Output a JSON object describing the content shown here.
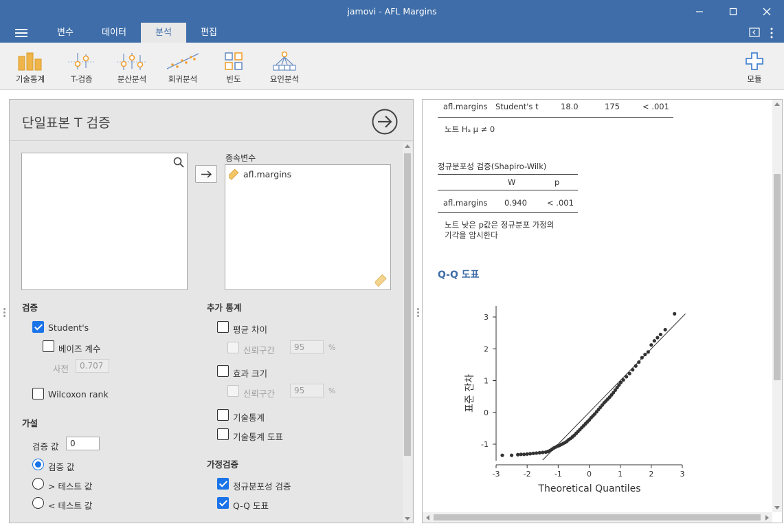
{
  "window": {
    "title": "jamovi - AFL Margins"
  },
  "menu": {
    "tabs": [
      "변수",
      "데이터",
      "분석",
      "편집"
    ],
    "active_tab": "분석"
  },
  "ribbon": {
    "items": [
      {
        "label": "기술통계",
        "icon": "bar-chart-icon"
      },
      {
        "label": "T-검증",
        "icon": "ttest-icon"
      },
      {
        "label": "분산분석",
        "icon": "anova-icon"
      },
      {
        "label": "회귀분석",
        "icon": "regression-icon"
      },
      {
        "label": "빈도",
        "icon": "frequency-icon"
      },
      {
        "label": "요인분석",
        "icon": "factor-icon"
      }
    ],
    "modules_label": "모듈"
  },
  "analysis": {
    "title": "단일표본 T 검증",
    "dependent_label": "종속변수",
    "dependent_vars": [
      "afl.margins"
    ],
    "tests": {
      "header": "검증",
      "students": "Student's",
      "bayes": "베이즈 계수",
      "prior_label": "사전",
      "prior_value": "0.707",
      "wilcoxon": "Wilcoxon rank"
    },
    "hypothesis": {
      "header": "가설",
      "test_value_label": "검증 값",
      "test_value": "0",
      "options": [
        "검증 값",
        "> 테스트 값",
        "< 테스트 값"
      ]
    },
    "additional": {
      "header": "추가 통계",
      "mean_diff": "평균 차이",
      "ci_label": "신뢰구간",
      "ci_value": "95",
      "pct": "%",
      "effect_size": "효과 크기",
      "descriptives": "기술통계",
      "desc_plots": "기술통계 도표"
    },
    "assumptions": {
      "header": "가정검증",
      "normality": "정규분포성 검증",
      "qq": "Q-Q 도표"
    }
  },
  "results": {
    "ttest_row": [
      "afl.margins",
      "Student's t",
      "18.0",
      "175",
      "< .001"
    ],
    "ttest_note": "노트 Hₐ μ ≠ 0",
    "normality_title": "정규분포성 검증(Shapiro-Wilk)",
    "normality_headers": [
      "W",
      "p"
    ],
    "normality_row": [
      "afl.margins",
      "0.940",
      "< .001"
    ],
    "normality_note": [
      "노트 낮은 p값은 정규분포 가정의",
      "기각을 암시한다"
    ],
    "qq_title": "Q-Q 도표"
  },
  "chart_data": {
    "type": "scatter",
    "title": "",
    "xlabel": "Theoretical Quantiles",
    "ylabel": "표준 잔차",
    "x_ticks": [
      "-3",
      "-2",
      "-1",
      "0",
      "1",
      "2",
      "3"
    ],
    "y_ticks": [
      "3",
      "2",
      "1",
      "0",
      "-1"
    ],
    "xlim": [
      -3,
      3
    ],
    "ylim": [
      -1.45,
      3.2
    ],
    "reference_line": {
      "from": [
        -1.5,
        -1.5
      ],
      "to": [
        3.1,
        3.1
      ]
    },
    "points": [
      [
        -2.8,
        -1.35
      ],
      [
        -2.5,
        -1.35
      ],
      [
        -2.3,
        -1.33
      ],
      [
        -2.2,
        -1.32
      ],
      [
        -2.1,
        -1.32
      ],
      [
        -2.0,
        -1.31
      ],
      [
        -1.9,
        -1.3
      ],
      [
        -1.8,
        -1.29
      ],
      [
        -1.7,
        -1.28
      ],
      [
        -1.6,
        -1.27
      ],
      [
        -1.5,
        -1.26
      ],
      [
        -1.4,
        -1.25
      ],
      [
        -1.33,
        -1.23
      ],
      [
        -1.26,
        -1.2
      ],
      [
        -1.2,
        -1.16
      ],
      [
        -1.14,
        -1.12
      ],
      [
        -1.08,
        -1.09
      ],
      [
        -1.02,
        -1.06
      ],
      [
        -0.96,
        -1.04
      ],
      [
        -0.9,
        -1.01
      ],
      [
        -0.84,
        -0.98
      ],
      [
        -0.78,
        -0.95
      ],
      [
        -0.72,
        -0.91
      ],
      [
        -0.66,
        -0.86
      ],
      [
        -0.6,
        -0.82
      ],
      [
        -0.54,
        -0.77
      ],
      [
        -0.48,
        -0.72
      ],
      [
        -0.42,
        -0.66
      ],
      [
        -0.36,
        -0.6
      ],
      [
        -0.3,
        -0.54
      ],
      [
        -0.24,
        -0.48
      ],
      [
        -0.18,
        -0.42
      ],
      [
        -0.12,
        -0.36
      ],
      [
        -0.06,
        -0.3
      ],
      [
        0.0,
        -0.24
      ],
      [
        0.06,
        -0.17
      ],
      [
        0.12,
        -0.11
      ],
      [
        0.18,
        -0.05
      ],
      [
        0.24,
        0.02
      ],
      [
        0.3,
        0.09
      ],
      [
        0.36,
        0.16
      ],
      [
        0.42,
        0.23
      ],
      [
        0.48,
        0.3
      ],
      [
        0.54,
        0.36
      ],
      [
        0.6,
        0.42
      ],
      [
        0.66,
        0.48
      ],
      [
        0.72,
        0.55
      ],
      [
        0.78,
        0.62
      ],
      [
        0.84,
        0.7
      ],
      [
        0.9,
        0.78
      ],
      [
        0.96,
        0.86
      ],
      [
        1.02,
        0.94
      ],
      [
        1.1,
        1.02
      ],
      [
        1.2,
        1.12
      ],
      [
        1.3,
        1.22
      ],
      [
        1.4,
        1.34
      ],
      [
        1.5,
        1.46
      ],
      [
        1.6,
        1.58
      ],
      [
        1.7,
        1.72
      ],
      [
        1.8,
        1.82
      ],
      [
        1.9,
        1.9
      ],
      [
        2.0,
        2.12
      ],
      [
        2.1,
        2.25
      ],
      [
        2.2,
        2.35
      ],
      [
        2.3,
        2.45
      ],
      [
        2.45,
        2.6
      ],
      [
        2.75,
        3.1
      ]
    ]
  }
}
